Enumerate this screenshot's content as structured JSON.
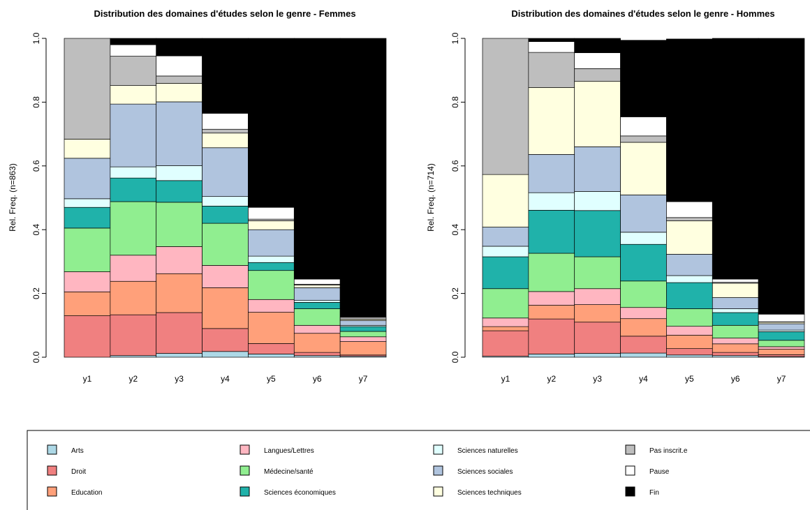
{
  "states": [
    {
      "name": "Arts",
      "color": "#ADD8E6"
    },
    {
      "name": "Droit",
      "color": "#F08080"
    },
    {
      "name": "Education",
      "color": "#FFA07A"
    },
    {
      "name": "Langues/Lettres",
      "color": "#FFB6C1"
    },
    {
      "name": "Médecine/santé",
      "color": "#90EE90"
    },
    {
      "name": "Sciences économiques",
      "color": "#20B2AA"
    },
    {
      "name": "Sciences naturelles",
      "color": "#E0FFFF"
    },
    {
      "name": "Sciences sociales",
      "color": "#B0C4DE"
    },
    {
      "name": "Sciences techniques",
      "color": "#FFFFE0"
    },
    {
      "name": "Pas inscrit.e",
      "color": "#BEBEBE"
    },
    {
      "name": "Pause",
      "color": "#FFFFFF"
    },
    {
      "name": "Fin",
      "color": "#000000"
    }
  ],
  "chart_data": [
    {
      "type": "bar",
      "stacked": true,
      "title": "Distribution des domaines d'études selon le genre - Femmes",
      "ylabel": "Rel. Freq. (n=863)",
      "ylim": [
        0,
        1
      ],
      "yticks": [
        "0.0",
        "0.2",
        "0.4",
        "0.6",
        "0.8",
        "1.0"
      ],
      "categories": [
        "y1",
        "y2",
        "y3",
        "y4",
        "y5",
        "y6",
        "y7"
      ],
      "widths": [
        1.0,
        0.98,
        0.945,
        0.765,
        0.47,
        0.245,
        0.125
      ],
      "series": [
        {
          "name": "Arts",
          "values": [
            0.0,
            0.005,
            0.012,
            0.018,
            0.01,
            0.005,
            0.003
          ]
        },
        {
          "name": "Droit",
          "values": [
            0.13,
            0.128,
            0.128,
            0.072,
            0.033,
            0.01,
            0.004
          ]
        },
        {
          "name": "Education",
          "values": [
            0.075,
            0.105,
            0.122,
            0.128,
            0.098,
            0.06,
            0.042
          ]
        },
        {
          "name": "Langues/Lettres",
          "values": [
            0.063,
            0.082,
            0.085,
            0.07,
            0.04,
            0.025,
            0.015
          ]
        },
        {
          "name": "Médecine/santé",
          "values": [
            0.137,
            0.168,
            0.139,
            0.132,
            0.091,
            0.052,
            0.017
          ]
        },
        {
          "name": "Sciences économiques",
          "values": [
            0.065,
            0.074,
            0.068,
            0.054,
            0.025,
            0.02,
            0.015
          ]
        },
        {
          "name": "Sciences naturelles",
          "values": [
            0.027,
            0.035,
            0.047,
            0.03,
            0.02,
            0.006,
            0.004
          ]
        },
        {
          "name": "Sciences sociales",
          "values": [
            0.127,
            0.197,
            0.2,
            0.153,
            0.083,
            0.04,
            0.015
          ]
        },
        {
          "name": "Sciences techniques",
          "values": [
            0.06,
            0.058,
            0.058,
            0.046,
            0.028,
            0.008,
            0.004
          ]
        },
        {
          "name": "Pas inscrit.e",
          "values": [
            0.316,
            0.092,
            0.023,
            0.012,
            0.005,
            0.003,
            0.001
          ]
        },
        {
          "name": "Pause",
          "values": [
            0.0,
            0.036,
            0.063,
            0.05,
            0.037,
            0.016,
            0.005
          ]
        },
        {
          "name": "Fin",
          "values": [
            0.0,
            0.02,
            0.055,
            0.235,
            0.53,
            0.755,
            0.875
          ]
        }
      ]
    },
    {
      "type": "bar",
      "stacked": true,
      "title": "Distribution des domaines d'études selon le genre - Hommes",
      "ylabel": "Rel. Freq. (n=714)",
      "ylim": [
        0,
        1
      ],
      "yticks": [
        "0.0",
        "0.2",
        "0.4",
        "0.6",
        "0.8",
        "1.0"
      ],
      "categories": [
        "y1",
        "y2",
        "y3",
        "y4",
        "y5",
        "y6",
        "y7"
      ],
      "widths": [
        1.0,
        0.99,
        0.955,
        0.76,
        0.49,
        0.245,
        0.135
      ],
      "series": [
        {
          "name": "Arts",
          "values": [
            0.003,
            0.01,
            0.012,
            0.013,
            0.007,
            0.005,
            0.002
          ]
        },
        {
          "name": "Droit",
          "values": [
            0.08,
            0.11,
            0.098,
            0.053,
            0.02,
            0.01,
            0.006
          ]
        },
        {
          "name": "Education",
          "values": [
            0.013,
            0.043,
            0.055,
            0.055,
            0.042,
            0.027,
            0.017
          ]
        },
        {
          "name": "Langues/Lettres",
          "values": [
            0.027,
            0.043,
            0.05,
            0.035,
            0.028,
            0.018,
            0.008
          ]
        },
        {
          "name": "Médecine/santé",
          "values": [
            0.092,
            0.12,
            0.1,
            0.083,
            0.055,
            0.04,
            0.02
          ]
        },
        {
          "name": "Sciences économiques",
          "values": [
            0.1,
            0.135,
            0.145,
            0.115,
            0.082,
            0.04,
            0.027
          ]
        },
        {
          "name": "Sciences naturelles",
          "values": [
            0.033,
            0.055,
            0.06,
            0.038,
            0.022,
            0.012,
            0.005
          ]
        },
        {
          "name": "Sciences sociales",
          "values": [
            0.06,
            0.12,
            0.14,
            0.117,
            0.067,
            0.035,
            0.02
          ]
        },
        {
          "name": "Sciences techniques",
          "values": [
            0.165,
            0.21,
            0.205,
            0.165,
            0.105,
            0.045,
            0.005
          ]
        },
        {
          "name": "Pas inscrit.e",
          "values": [
            0.427,
            0.11,
            0.04,
            0.02,
            0.01,
            0.003,
            0.001
          ]
        },
        {
          "name": "Pause",
          "values": [
            0.0,
            0.034,
            0.05,
            0.06,
            0.05,
            0.01,
            0.024
          ]
        },
        {
          "name": "Fin",
          "values": [
            0.0,
            0.01,
            0.045,
            0.24,
            0.51,
            0.755,
            0.865
          ]
        }
      ]
    }
  ]
}
